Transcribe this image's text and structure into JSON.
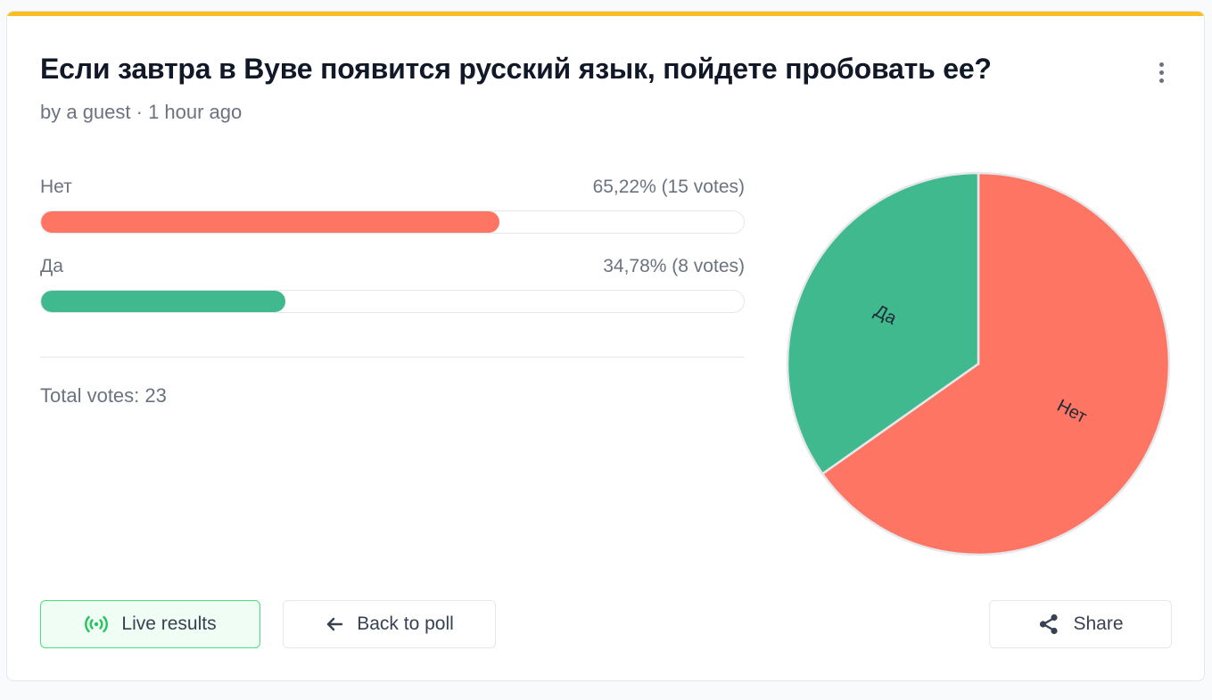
{
  "poll": {
    "title": "Если завтра в Вуве появится русский язык, пойдете пробовать ее?",
    "meta": "by a guest · 1 hour ago",
    "total_label": "Total votes: 23"
  },
  "colors": {
    "accent": "#fbbf24",
    "net": "#fe7563",
    "da": "#40b98e"
  },
  "options": [
    {
      "label": "Нет",
      "result": "65,22% (15 votes)"
    },
    {
      "label": "Да",
      "result": "34,78% (8 votes)"
    }
  ],
  "chart_data": {
    "type": "pie",
    "categories": [
      "Нет",
      "Да"
    ],
    "values": [
      65.22,
      34.78
    ],
    "votes": [
      15,
      8
    ],
    "colors": [
      "#fe7563",
      "#40b98e"
    ]
  },
  "buttons": {
    "live_label": "Live results",
    "back_label": "Back to poll",
    "share_label": "Share"
  },
  "icons": {
    "live": "broadcast-icon",
    "back": "arrow-left-icon",
    "share": "share-icon",
    "menu": "more-vertical-icon"
  }
}
